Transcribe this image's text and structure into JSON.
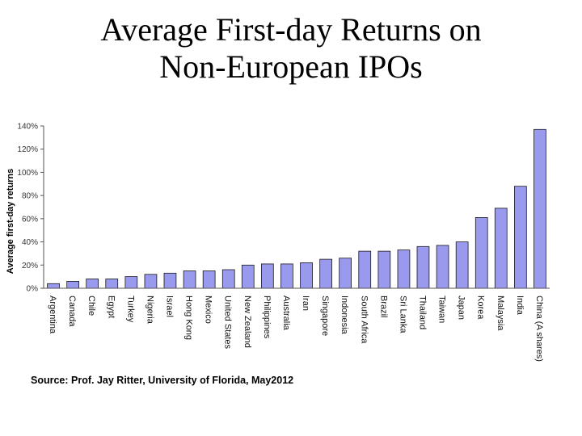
{
  "slide": {
    "title_line1": "Average First-day Returns on",
    "title_line2": "Non-European IPOs",
    "source": "Source: Prof. Jay Ritter, University of Florida, May2012"
  },
  "chart_data": {
    "type": "bar",
    "title": "",
    "xlabel": "",
    "ylabel": "Average first-day returns",
    "ylim": [
      0,
      140
    ],
    "yticks": [
      0,
      20,
      40,
      60,
      80,
      100,
      120,
      140
    ],
    "ytick_labels": [
      "0%",
      "20%",
      "40%",
      "60%",
      "80%",
      "100%",
      "120%",
      "140%"
    ],
    "grid": false,
    "categories": [
      "Argentina",
      "Canada",
      "Chile",
      "Egypt",
      "Turkey",
      "Nigeria",
      "Israel",
      "Hong Kong",
      "Mexico",
      "United States",
      "New Zealand",
      "Philippines",
      "Australia",
      "Iran",
      "Singapore",
      "Indonesia",
      "South Africa",
      "Brazil",
      "Sri Lanka",
      "Thailand",
      "Taiwan",
      "Japan",
      "Korea",
      "Malaysia",
      "India",
      "China (A shares)"
    ],
    "values": [
      4,
      6,
      8,
      8,
      10,
      12,
      13,
      15,
      15,
      16,
      20,
      21,
      21,
      22,
      25,
      26,
      32,
      32,
      33,
      36,
      37,
      40,
      61,
      69,
      88,
      137
    ],
    "bar_color": "#9999ee",
    "bar_stroke": "#1a1a1a"
  }
}
